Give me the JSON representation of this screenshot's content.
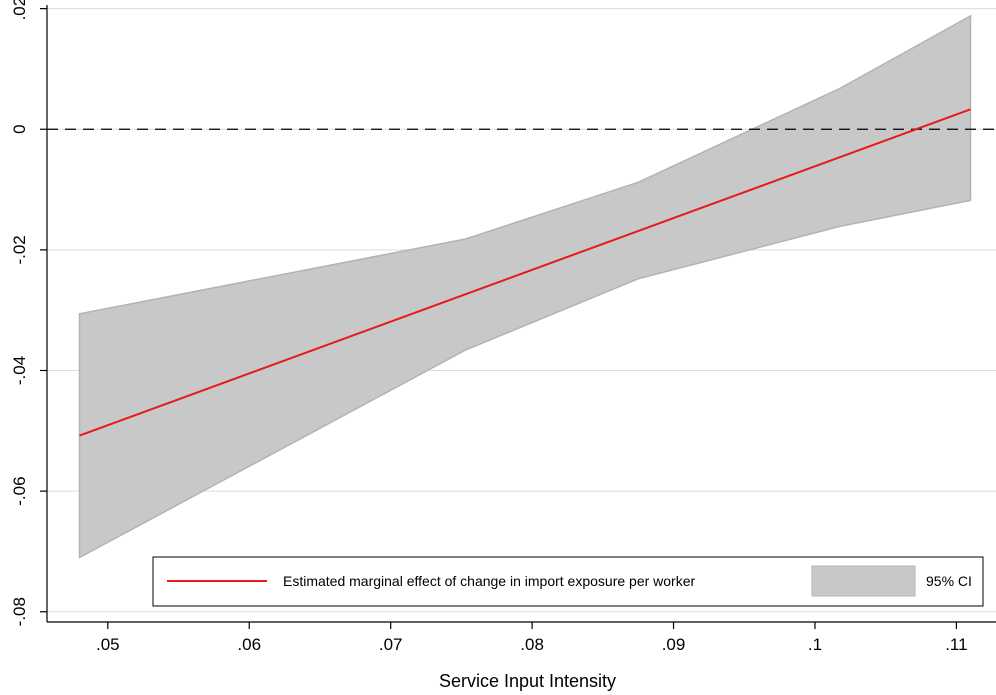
{
  "chart_data": {
    "type": "line",
    "title": "",
    "xlabel": "Service Input Intensity",
    "ylabel": "",
    "xlim": [
      0.0457,
      0.1128
    ],
    "ylim": [
      -0.0817,
      0.0206
    ],
    "x_ticks": [
      0.05,
      0.06,
      0.07,
      0.08,
      0.09,
      0.1,
      0.11
    ],
    "x_tick_labels": [
      ".05",
      ".06",
      ".07",
      ".08",
      ".09",
      ".1",
      ".11"
    ],
    "y_ticks": [
      -0.08,
      -0.06,
      -0.04,
      -0.02,
      0,
      0.02
    ],
    "y_tick_labels": [
      "-.08",
      "-.06",
      "-.04",
      "-.02",
      "0",
      ".02"
    ],
    "grid": true,
    "reference_line": {
      "y": 0,
      "style": "dashed",
      "color": "#000000"
    },
    "series": [
      {
        "name": "Estimated marginal effect of change in import exposure per worker",
        "color": "#e8191c",
        "x": [
          0.048,
          0.111
        ],
        "y": [
          -0.0508,
          0.0033
        ]
      }
    ],
    "confidence_band": {
      "name": "95% CI",
      "color": "#c8c8c8",
      "edge_color": "#b3b3b3",
      "x": [
        0.048,
        0.0753,
        0.0875,
        0.1018,
        0.111
      ],
      "lower": [
        -0.071,
        -0.0366,
        -0.0248,
        -0.0161,
        -0.0118
      ],
      "upper": [
        -0.0306,
        -0.0182,
        -0.0088,
        0.0068,
        0.0188
      ]
    },
    "legend": {
      "position": "bottom-inside"
    }
  }
}
